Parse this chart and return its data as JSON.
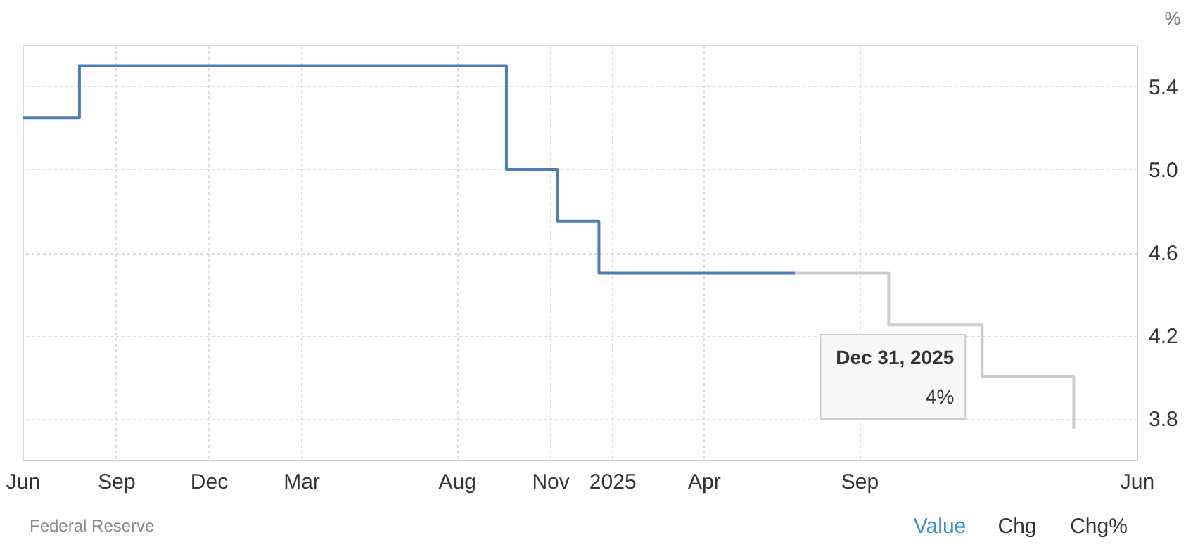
{
  "chart_data": {
    "type": "step",
    "ylabel": "%",
    "xlim": [
      "2023-06-01",
      "2026-06-01"
    ],
    "xticks": [
      {
        "value": "2023-06-01",
        "label": "Jun"
      },
      {
        "value": "2023-09-01",
        "label": "Sep"
      },
      {
        "value": "2023-12-01",
        "label": "Dec"
      },
      {
        "value": "2024-03-01",
        "label": "Mar"
      },
      {
        "value": "2024-08-01",
        "label": "Aug"
      },
      {
        "value": "2024-11-01",
        "label": "Nov"
      },
      {
        "value": "2025-01-01",
        "label": "2025"
      },
      {
        "value": "2025-04-01",
        "label": "Apr"
      },
      {
        "value": "2025-09-01",
        "label": "Sep"
      },
      {
        "value": "2026-06-01",
        "label": "Jun"
      }
    ],
    "ylim": [
      3.6,
      5.6
    ],
    "yticks": [
      3.8,
      4.2,
      4.6,
      {
        "value": 5,
        "label": "5.0"
      },
      5.4
    ],
    "series": [
      {
        "color": "#4a7ebb",
        "x": [
          "2023-06-01",
          "2023-07-27",
          "2024-09-19",
          "2024-11-08",
          "2024-12-19",
          "2025-06-30"
        ],
        "values": [
          5.25,
          5.5,
          5.0,
          4.75,
          4.5,
          4.5
        ]
      },
      {
        "color": "#cccccc",
        "x": [
          "2025-06-30",
          "2025-09-30",
          "2025-12-31",
          "2026-03-31"
        ],
        "values": [
          4.5,
          4.25,
          4.0,
          3.75
        ]
      }
    ],
    "annotations": [
      {
        "text": "Dec 31, 2025\n4%",
        "x": "2025-12-31",
        "y": 4.0
      },
      "Federal Reserve",
      "Value",
      "Chg",
      "Chg%"
    ],
    "grid": true,
    "line_style": "solid",
    "marker": "none"
  }
}
